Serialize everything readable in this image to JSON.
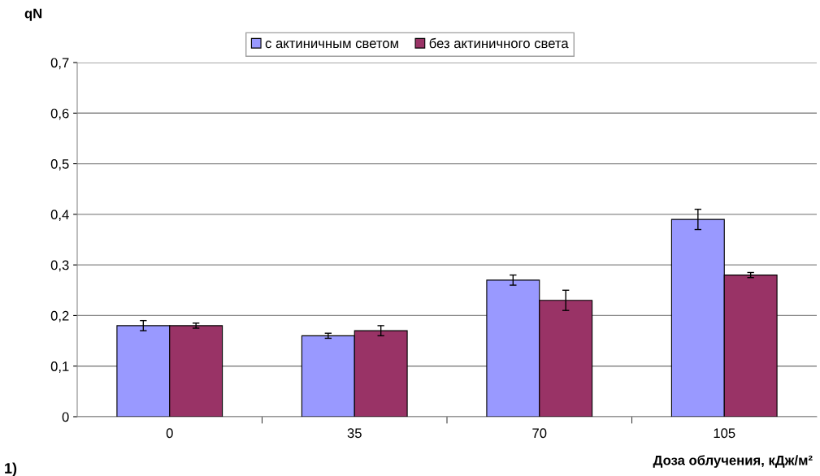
{
  "chart_data": {
    "type": "bar",
    "ylabel": "qN",
    "xlabel": "Доза облучения, кДж/м²",
    "categories": [
      "0",
      "35",
      "70",
      "105"
    ],
    "series": [
      {
        "name": "с актиничным светом",
        "color": "#9999ff",
        "values": [
          0.18,
          0.16,
          0.27,
          0.39
        ],
        "errors": [
          0.01,
          0.005,
          0.01,
          0.02
        ]
      },
      {
        "name": "без актиничного света",
        "color": "#993366",
        "values": [
          0.18,
          0.17,
          0.23,
          0.28
        ],
        "errors": [
          0.005,
          0.01,
          0.02,
          0.005
        ]
      }
    ],
    "ylim": [
      0,
      0.7
    ],
    "yticks": [
      {
        "value": 0,
        "label": "0"
      },
      {
        "value": 0.1,
        "label": "0,1"
      },
      {
        "value": 0.2,
        "label": "0,2"
      },
      {
        "value": 0.3,
        "label": "0,3"
      },
      {
        "value": 0.4,
        "label": "0,4"
      },
      {
        "value": 0.5,
        "label": "0,5"
      },
      {
        "value": 0.6,
        "label": "0,6"
      },
      {
        "value": 0.7,
        "label": "0,7"
      }
    ],
    "grid": "y",
    "legend": "top",
    "annotations": [
      "1)"
    ]
  }
}
